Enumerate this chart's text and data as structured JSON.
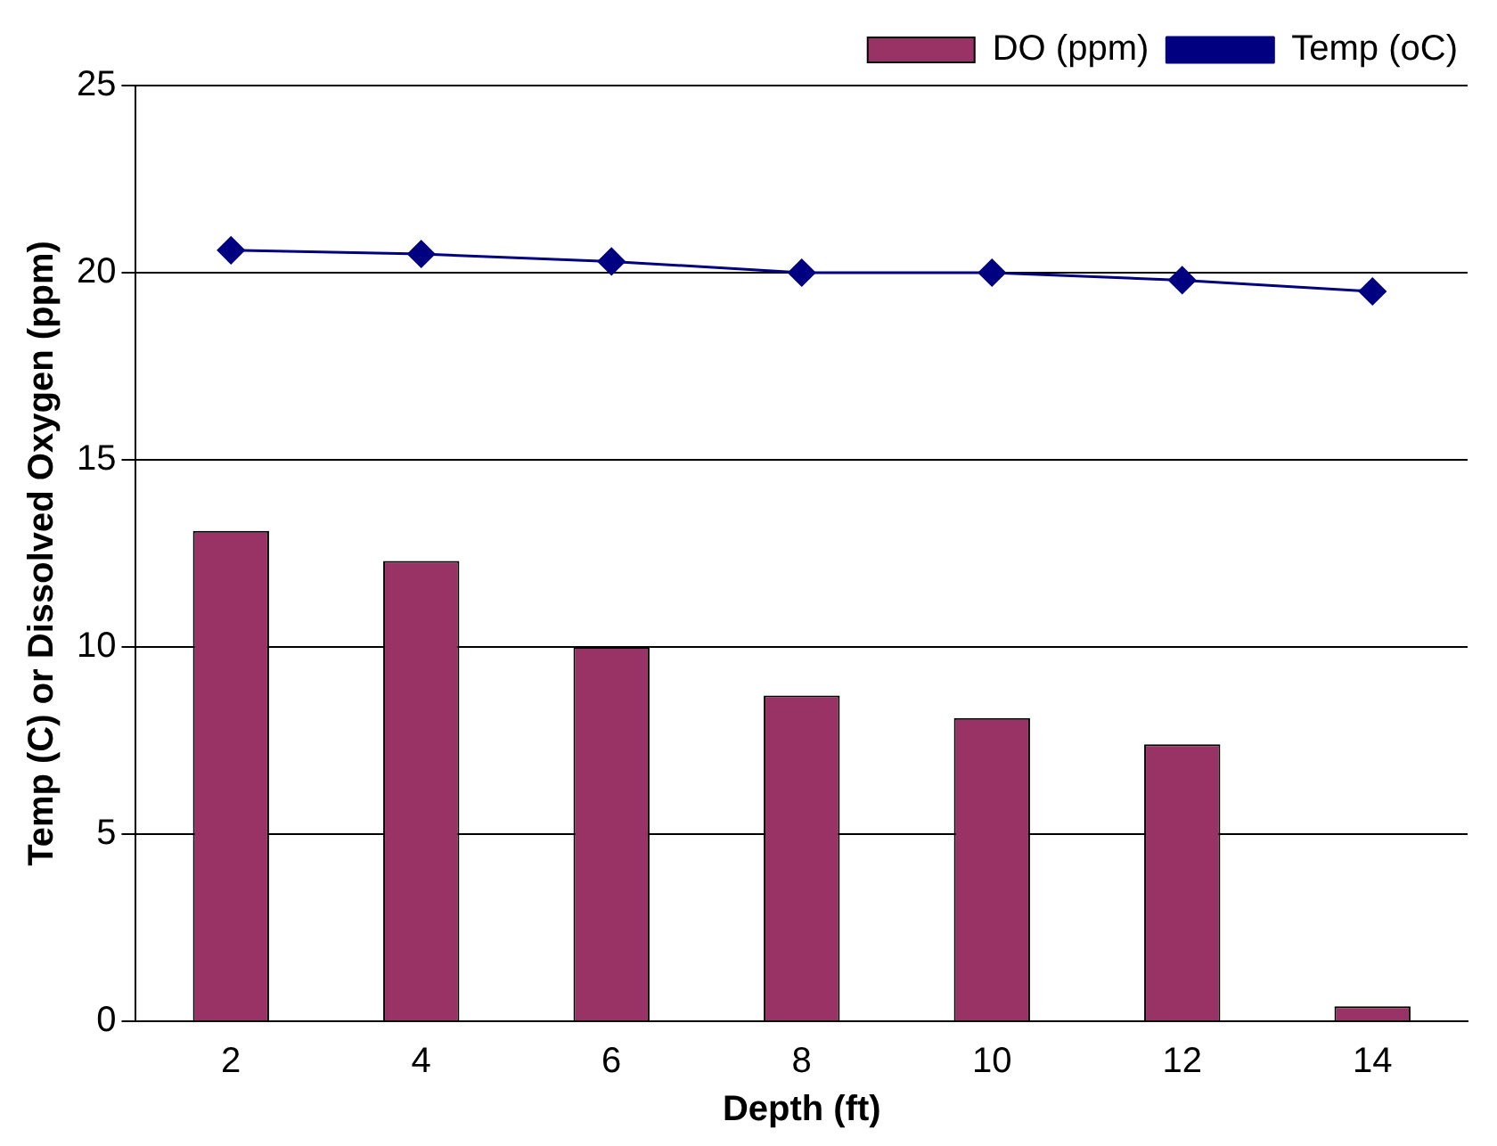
{
  "chart_data": {
    "type": "bar",
    "xlabel": "Depth (ft)",
    "ylabel": "Temp (C) or Dissolved Oxygen (ppm)",
    "categories": [
      "2",
      "4",
      "6",
      "8",
      "10",
      "12",
      "14"
    ],
    "series": [
      {
        "name": "DO (ppm)",
        "color": "#993366",
        "values": [
          13.1,
          12.3,
          10.0,
          8.7,
          8.1,
          7.4,
          0.4
        ]
      },
      {
        "name": "Temp (oC)",
        "type": "line",
        "color": "#000080",
        "values": [
          20.6,
          20.5,
          20.3,
          20.0,
          20.0,
          19.8,
          19.5
        ]
      }
    ],
    "ylim": [
      0,
      25
    ],
    "yticks": [
      0,
      5,
      10,
      15,
      20,
      25
    ],
    "grid": "y",
    "legend": "top right",
    "marker": "diamond",
    "line_style": "solid"
  }
}
